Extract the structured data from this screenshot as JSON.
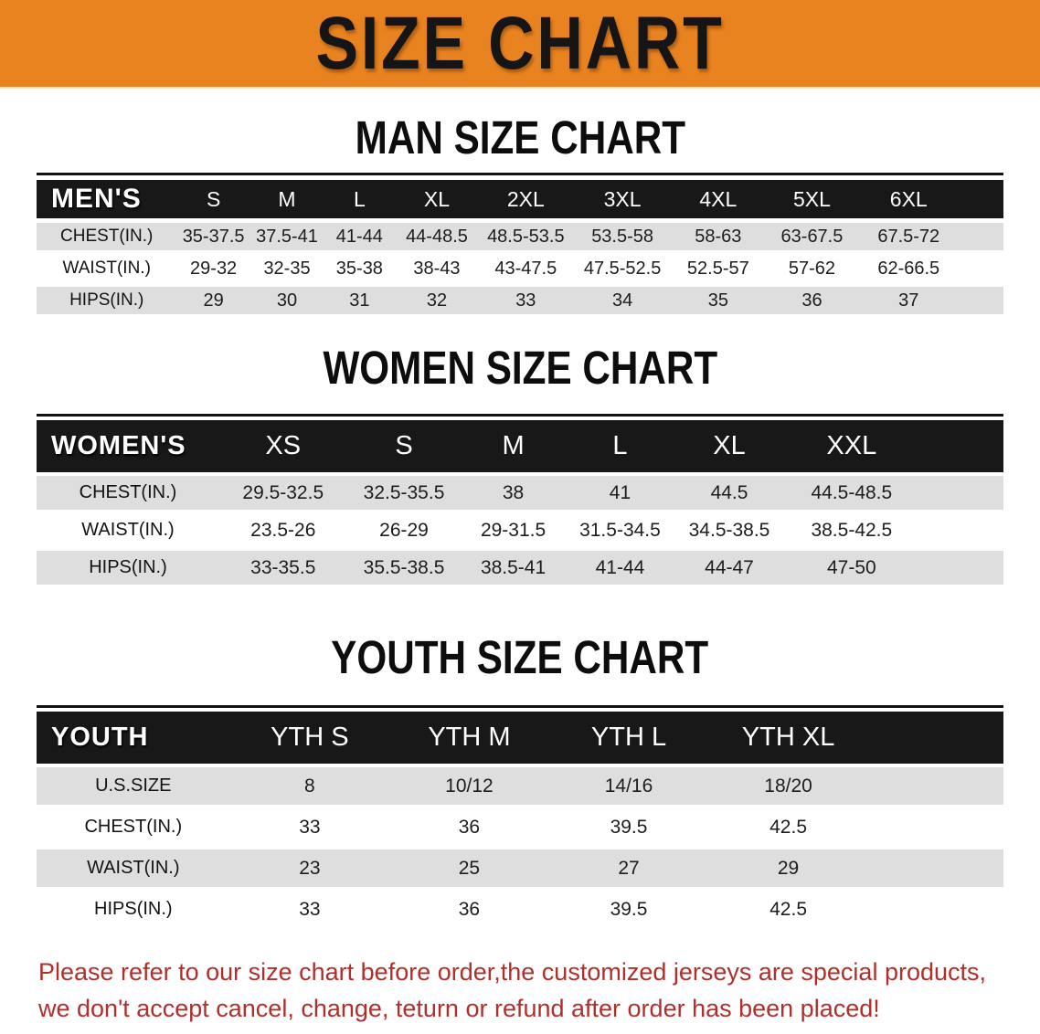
{
  "banner": {
    "title": "SIZE CHART"
  },
  "colors": {
    "banner_bg": "#E8831F",
    "header_bar": "#181818",
    "row_gray": "#DEDEDE",
    "disclaimer_red": "#B22E2A"
  },
  "sections": [
    {
      "heading": "MAN SIZE CHART",
      "table": {
        "header_label": "MEN'S",
        "columns": [
          "S",
          "M",
          "L",
          "XL",
          "2XL",
          "3XL",
          "4XL",
          "5XL",
          "6XL"
        ],
        "rows": [
          {
            "label": "CHEST(IN.)",
            "values": [
              "35-37.5",
              "37.5-41",
              "41-44",
              "44-48.5",
              "48.5-53.5",
              "53.5-58",
              "58-63",
              "63-67.5",
              "67.5-72"
            ]
          },
          {
            "label": "WAIST(IN.)",
            "values": [
              "29-32",
              "32-35",
              "35-38",
              "38-43",
              "43-47.5",
              "47.5-52.5",
              "52.5-57",
              "57-62",
              "62-66.5"
            ]
          },
          {
            "label": "HIPS(IN.)",
            "values": [
              "29",
              "30",
              "31",
              "32",
              "33",
              "34",
              "35",
              "36",
              "37"
            ]
          }
        ]
      }
    },
    {
      "heading": "WOMEN SIZE CHART",
      "table": {
        "header_label": "WOMEN'S",
        "columns": [
          "XS",
          "S",
          "M",
          "L",
          "XL",
          "XXL"
        ],
        "rows": [
          {
            "label": "CHEST(IN.)",
            "values": [
              "29.5-32.5",
              "32.5-35.5",
              "38",
              "41",
              "44.5",
              "44.5-48.5"
            ]
          },
          {
            "label": "WAIST(IN.)",
            "values": [
              "23.5-26",
              "26-29",
              "29-31.5",
              "31.5-34.5",
              "34.5-38.5",
              "38.5-42.5"
            ]
          },
          {
            "label": "HIPS(IN.)",
            "values": [
              "33-35.5",
              "35.5-38.5",
              "38.5-41",
              "41-44",
              "44-47",
              "47-50"
            ]
          }
        ]
      }
    },
    {
      "heading": "YOUTH SIZE CHART",
      "table": {
        "header_label": "YOUTH",
        "columns": [
          "YTH S",
          "YTH M",
          "YTH L",
          "YTH XL"
        ],
        "rows": [
          {
            "label": "U.S.SIZE",
            "values": [
              "8",
              "10/12",
              "14/16",
              "18/20"
            ]
          },
          {
            "label": "CHEST(IN.)",
            "values": [
              "33",
              "36",
              "39.5",
              "42.5"
            ]
          },
          {
            "label": "WAIST(IN.)",
            "values": [
              "23",
              "25",
              "27",
              "29"
            ]
          },
          {
            "label": "HIPS(IN.)",
            "values": [
              "33",
              "36",
              "39.5",
              "42.5"
            ]
          }
        ]
      }
    }
  ],
  "footer": {
    "line1": "Please refer to our size chart before order,the customized jerseys are special products,",
    "line2": "we don't accept cancel, change, teturn or refund after order has been placed!"
  }
}
